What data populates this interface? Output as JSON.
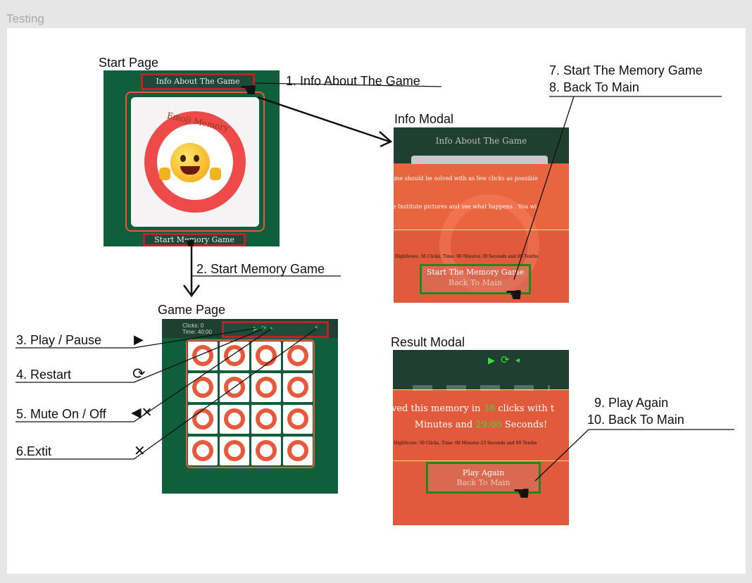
{
  "frame_title": "Testing",
  "sections": {
    "start_page": "Start Page",
    "info_modal": "Info Modal",
    "game_page": "Game Page",
    "result_modal": "Result Modal"
  },
  "start_page": {
    "info_button": "Info About The Game",
    "logo_text": "Emoji Memory",
    "start_button": "Start Memory Game"
  },
  "info_modal": {
    "title": "Info About The Game",
    "line1": "ame should be solved with as few clicks as possible",
    "line2": "le Institute pictures and see what happens . You wi",
    "highscore": "HighScore: 36 Clicks, Time: 00 Minutes 39 Seconds and 00 Tenths",
    "start_button": "Start The Memory Game",
    "back_button": "Back To Main"
  },
  "game_page": {
    "clicks": "Clicks: 0",
    "time": "Time: 40:00"
  },
  "result_modal": {
    "line1_pre": "ved this memory in ",
    "clicks_value": "38",
    "line1_post": " clicks with t",
    "line2_pre": "Minutes and ",
    "seconds_value": "29:06",
    "line2_post": " Seconds!",
    "highscore": "HighScore: 30 Clicks, Time: 00 Minutes 23 Seconds and 09 Tenths",
    "play_again": "Play Again",
    "back_button": "Back To Main"
  },
  "annotations": {
    "a1": "1. Info About The Game",
    "a2": "2. Start Memory Game",
    "a3": "3. Play / Pause",
    "a4": "4. Restart",
    "a5": "5. Mute On / Off",
    "a6": "6.Extit",
    "a7": "7. Start The Memory Game",
    "a8": "8. Back To Main",
    "a9": "9. Play Again",
    "a10": "10. Back To Main"
  },
  "icons": {
    "play": "play-icon",
    "restart": "restart-icon",
    "mute": "mute-icon",
    "exit": "close-icon",
    "cursor": "hand-cursor-icon"
  },
  "colors": {
    "dark_green": "#0f5e3c",
    "modal_orange": "#e15a3c",
    "highlight_red": "#c0202a",
    "highlight_green": "#1d8a1d",
    "accent_green": "#3ddc3d"
  }
}
